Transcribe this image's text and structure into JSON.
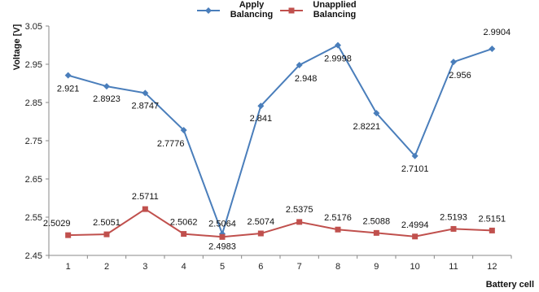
{
  "chart_data": {
    "type": "line",
    "title": "",
    "xlabel": "Battery cell",
    "ylabel": "Voltage [V]",
    "categories": [
      "1",
      "2",
      "3",
      "4",
      "5",
      "6",
      "7",
      "8",
      "9",
      "10",
      "11",
      "12"
    ],
    "ylim": [
      2.45,
      3.05
    ],
    "yticks": [
      "2.45",
      "2.55",
      "2.65",
      "2.75",
      "2.85",
      "2.95",
      "3.05"
    ],
    "grid": false,
    "legend_position": "top",
    "series": [
      {
        "name_lines": [
          "Apply",
          "Balancing"
        ],
        "color": "#4a7ebb",
        "marker": "diamond",
        "values": [
          2.921,
          2.8923,
          2.8747,
          2.7776,
          2.5064,
          2.841,
          2.948,
          2.9998,
          2.8221,
          2.7101,
          2.956,
          2.9904
        ],
        "labels": [
          "2.921",
          "2.8923",
          "2.8747",
          "2.7776",
          "2.5064",
          "2.841",
          "2.948",
          "2.9998",
          "2.8221",
          "2.7101",
          "2.956",
          "2.9904"
        ]
      },
      {
        "name_lines": [
          "Unapplied",
          "Balancing"
        ],
        "color": "#c0504d",
        "marker": "square",
        "values": [
          2.5029,
          2.5051,
          2.5711,
          2.5062,
          2.4983,
          2.5074,
          2.5375,
          2.5176,
          2.5088,
          2.4994,
          2.5193,
          2.5151
        ],
        "labels": [
          "2.5029",
          "2.5051",
          "2.5711",
          "2.5062",
          "2.4983",
          "2.5074",
          "2.5375",
          "2.5176",
          "2.5088",
          "2.4994",
          "2.5193",
          "2.5151"
        ]
      }
    ]
  }
}
